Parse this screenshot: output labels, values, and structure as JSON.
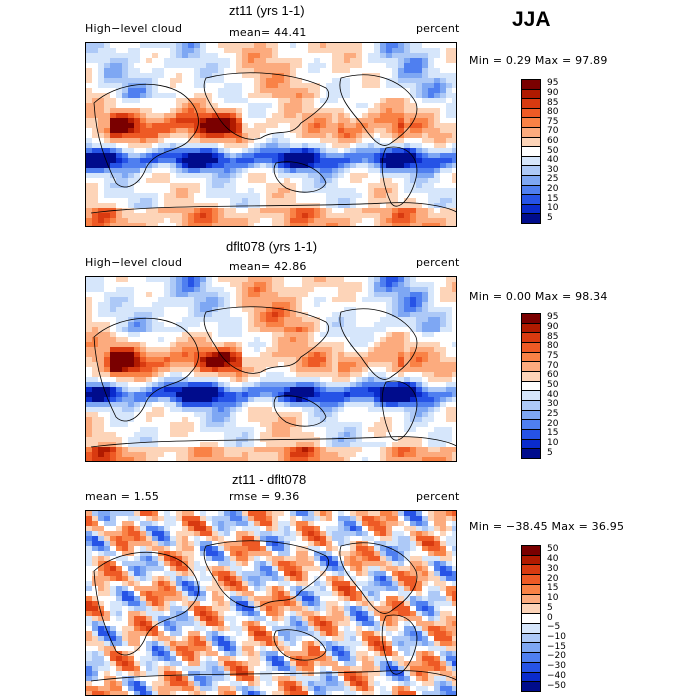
{
  "season": "JJA",
  "panels": [
    {
      "title": "zt11 (yrs 1-1)",
      "left_label": "High−level cloud",
      "center_label": "mean=  44.41",
      "right_label": "percent",
      "minmax": "Min =   0.29 Max =  97.89",
      "colorbar": {
        "levels": [
          "95",
          "90",
          "85",
          "80",
          "75",
          "70",
          "60",
          "50",
          "40",
          "30",
          "25",
          "20",
          "15",
          "10",
          "5"
        ],
        "colors": [
          "#7a0000",
          "#b01a00",
          "#d83a10",
          "#ee5a25",
          "#f98246",
          "#fcab7e",
          "#fdd4b8",
          "#ffffff",
          "#d6e6fb",
          "#adc9f7",
          "#7ea7f3",
          "#4f7ff0",
          "#2653e6",
          "#0a2bcc",
          "#000c8c"
        ]
      }
    },
    {
      "title": "dflt078 (yrs 1-1)",
      "left_label": "High−level cloud",
      "center_label": "mean=  42.86",
      "right_label": "percent",
      "minmax": "Min =   0.00 Max =  98.34",
      "colorbar": {
        "levels": [
          "95",
          "90",
          "85",
          "80",
          "75",
          "70",
          "60",
          "50",
          "40",
          "30",
          "25",
          "20",
          "15",
          "10",
          "5"
        ],
        "colors": [
          "#7a0000",
          "#b01a00",
          "#d83a10",
          "#ee5a25",
          "#f98246",
          "#fcab7e",
          "#fdd4b8",
          "#ffffff",
          "#d6e6fb",
          "#adc9f7",
          "#7ea7f3",
          "#4f7ff0",
          "#2653e6",
          "#0a2bcc",
          "#000c8c"
        ]
      }
    },
    {
      "title": "zt11 - dflt078",
      "left_label": "mean =    1.55",
      "center_label": "rmse =    9.36",
      "right_label": "percent",
      "minmax": "Min = −38.45 Max =  36.95",
      "colorbar": {
        "levels": [
          "50",
          "40",
          "30",
          "20",
          "15",
          "10",
          "5",
          "0",
          "−5",
          "−10",
          "−15",
          "−20",
          "−30",
          "−40",
          "−50"
        ],
        "colors": [
          "#7a0000",
          "#b01a00",
          "#d83a10",
          "#ee5a25",
          "#f98246",
          "#fcab7e",
          "#fdd4b8",
          "#ffffff",
          "#d6e6fb",
          "#adc9f7",
          "#7ea7f3",
          "#4f7ff0",
          "#2653e6",
          "#0a2bcc",
          "#000c8c"
        ]
      }
    }
  ],
  "chart_data": [
    {
      "type": "heatmap",
      "title": "zt11 (yrs 1-1)",
      "variable": "High-level cloud",
      "units": "percent",
      "mean": 44.41,
      "min": 0.29,
      "max": 97.89,
      "season": "JJA",
      "levels": [
        5,
        10,
        15,
        20,
        25,
        30,
        40,
        50,
        60,
        70,
        75,
        80,
        85,
        90,
        95
      ]
    },
    {
      "type": "heatmap",
      "title": "dflt078 (yrs 1-1)",
      "variable": "High-level cloud",
      "units": "percent",
      "mean": 42.86,
      "min": 0.0,
      "max": 98.34,
      "season": "JJA",
      "levels": [
        5,
        10,
        15,
        20,
        25,
        30,
        40,
        50,
        60,
        70,
        75,
        80,
        85,
        90,
        95
      ]
    },
    {
      "type": "heatmap",
      "title": "zt11 - dflt078",
      "units": "percent",
      "mean": 1.55,
      "rmse": 9.36,
      "min": -38.45,
      "max": 36.95,
      "season": "JJA",
      "levels": [
        -50,
        -40,
        -30,
        -20,
        -15,
        -10,
        -5,
        0,
        5,
        10,
        15,
        20,
        30,
        40,
        50
      ]
    }
  ]
}
